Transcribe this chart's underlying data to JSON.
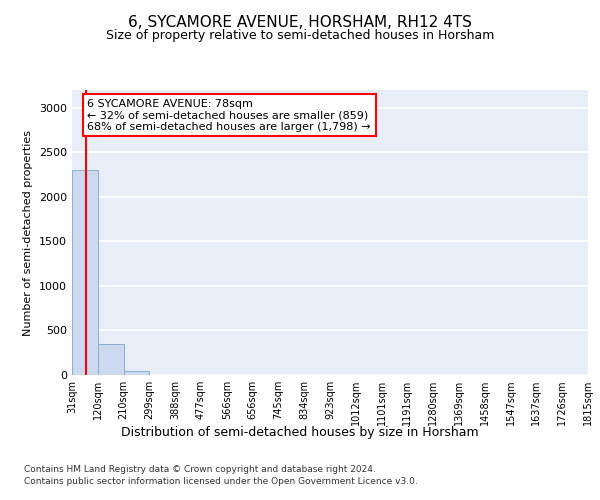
{
  "title1": "6, SYCAMORE AVENUE, HORSHAM, RH12 4TS",
  "title2": "Size of property relative to semi-detached houses in Horsham",
  "xlabel": "Distribution of semi-detached houses by size in Horsham",
  "ylabel": "Number of semi-detached properties",
  "bar_heights": [
    2300,
    350,
    50,
    5,
    3,
    2,
    1,
    1,
    1,
    1,
    0,
    0,
    0,
    0,
    0,
    0,
    0,
    0,
    0,
    0
  ],
  "bar_color": "#ccd9ee",
  "bar_edgecolor": "#8aafd4",
  "property_size": 78,
  "property_line_color": "red",
  "annotation_text": "6 SYCAMORE AVENUE: 78sqm\n← 32% of semi-detached houses are smaller (859)\n68% of semi-detached houses are larger (1,798) →",
  "annotation_box_color": "white",
  "annotation_box_edgecolor": "red",
  "ylim": [
    0,
    3200
  ],
  "yticks": [
    0,
    500,
    1000,
    1500,
    2000,
    2500,
    3000
  ],
  "tick_labels": [
    "31sqm",
    "120sqm",
    "210sqm",
    "299sqm",
    "388sqm",
    "477sqm",
    "566sqm",
    "656sqm",
    "745sqm",
    "834sqm",
    "923sqm",
    "1012sqm",
    "1101sqm",
    "1191sqm",
    "1280sqm",
    "1369sqm",
    "1458sqm",
    "1547sqm",
    "1637sqm",
    "1726sqm",
    "1815sqm"
  ],
  "footer1": "Contains HM Land Registry data © Crown copyright and database right 2024.",
  "footer2": "Contains public sector information licensed under the Open Government Licence v3.0.",
  "plot_bg_color": "#e8eef8",
  "grid_color": "#ffffff",
  "fig_bg_color": "#ffffff",
  "n_bars": 20,
  "annot_fontsize": 8,
  "title1_fontsize": 11,
  "title2_fontsize": 9,
  "ylabel_fontsize": 8,
  "tick_fontsize": 7,
  "footer_fontsize": 6.5
}
